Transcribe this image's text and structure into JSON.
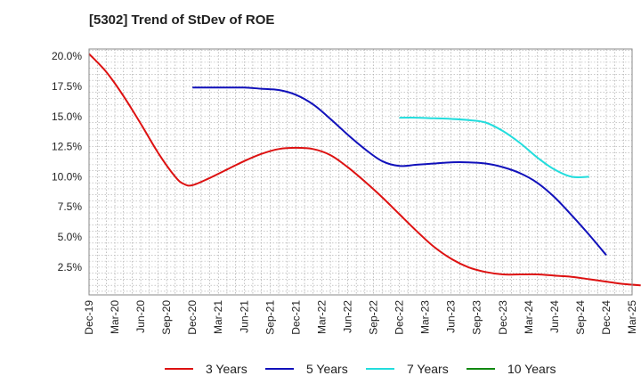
{
  "chart_data": {
    "type": "line",
    "title": "[5302]  Trend of StDev of ROE",
    "xlabel": "",
    "ylabel": "",
    "x_ticks": [
      "Dec-19",
      "Mar-20",
      "Jun-20",
      "Sep-20",
      "Dec-20",
      "Mar-21",
      "Jun-21",
      "Sep-21",
      "Dec-21",
      "Mar-22",
      "Jun-22",
      "Sep-22",
      "Dec-22",
      "Mar-23",
      "Jun-23",
      "Sep-23",
      "Dec-23",
      "Mar-24",
      "Jun-24",
      "Sep-24",
      "Dec-24",
      "Mar-25"
    ],
    "y_ticks": [
      "2.5%",
      "5.0%",
      "7.5%",
      "10.0%",
      "12.5%",
      "15.0%",
      "17.5%",
      "20.0%"
    ],
    "y_tick_values": [
      2.5,
      5.0,
      7.5,
      10.0,
      12.5,
      15.0,
      17.5,
      20.0
    ],
    "ylim": [
      0.2,
      20.6
    ],
    "grid": true,
    "legend_position": "bottom",
    "series": [
      {
        "name": "3 Years",
        "color": "#dd1111",
        "points": [
          [
            0,
            20.2
          ],
          [
            1,
            18.7
          ],
          [
            2,
            16.7
          ],
          [
            3,
            14.4
          ],
          [
            4,
            12.0
          ],
          [
            5,
            10.0
          ],
          [
            5.5,
            9.4
          ],
          [
            6,
            9.3
          ],
          [
            7,
            9.9
          ],
          [
            8,
            10.6
          ],
          [
            9,
            11.3
          ],
          [
            10,
            11.9
          ],
          [
            11,
            12.3
          ],
          [
            12,
            12.4
          ],
          [
            13,
            12.3
          ],
          [
            14,
            11.8
          ],
          [
            15,
            10.8
          ],
          [
            16,
            9.6
          ],
          [
            17,
            8.3
          ],
          [
            18,
            6.9
          ],
          [
            19,
            5.5
          ],
          [
            20,
            4.2
          ],
          [
            21,
            3.2
          ],
          [
            22,
            2.5
          ],
          [
            23,
            2.1
          ],
          [
            24,
            1.9
          ],
          [
            25,
            1.9
          ],
          [
            26,
            1.9
          ],
          [
            27,
            1.8
          ],
          [
            28,
            1.7
          ],
          [
            29,
            1.5
          ],
          [
            30,
            1.3
          ],
          [
            31,
            1.1
          ],
          [
            32,
            1.0
          ]
        ]
      },
      {
        "name": "5 Years",
        "color": "#1111bb",
        "points": [
          [
            6,
            17.4
          ],
          [
            7,
            17.4
          ],
          [
            8,
            17.4
          ],
          [
            9,
            17.4
          ],
          [
            10,
            17.3
          ],
          [
            11,
            17.2
          ],
          [
            12,
            16.8
          ],
          [
            13,
            16.0
          ],
          [
            14,
            14.8
          ],
          [
            15,
            13.5
          ],
          [
            16,
            12.3
          ],
          [
            17,
            11.3
          ],
          [
            18,
            10.9
          ],
          [
            19,
            11.0
          ],
          [
            20,
            11.1
          ],
          [
            21,
            11.2
          ],
          [
            22,
            11.2
          ],
          [
            23,
            11.1
          ],
          [
            24,
            10.8
          ],
          [
            25,
            10.3
          ],
          [
            26,
            9.5
          ],
          [
            27,
            8.3
          ],
          [
            28,
            6.8
          ],
          [
            29,
            5.2
          ],
          [
            30,
            3.5
          ]
        ]
      },
      {
        "name": "7 Years",
        "color": "#22dddd",
        "points": [
          [
            18,
            14.9
          ],
          [
            19,
            14.9
          ],
          [
            20,
            14.85
          ],
          [
            21,
            14.8
          ],
          [
            22,
            14.7
          ],
          [
            23,
            14.5
          ],
          [
            24,
            13.8
          ],
          [
            25,
            12.8
          ],
          [
            26,
            11.6
          ],
          [
            27,
            10.6
          ],
          [
            28,
            10.0
          ],
          [
            29,
            10.0
          ]
        ]
      },
      {
        "name": "10 Years",
        "color": "#118811",
        "points": []
      }
    ]
  }
}
